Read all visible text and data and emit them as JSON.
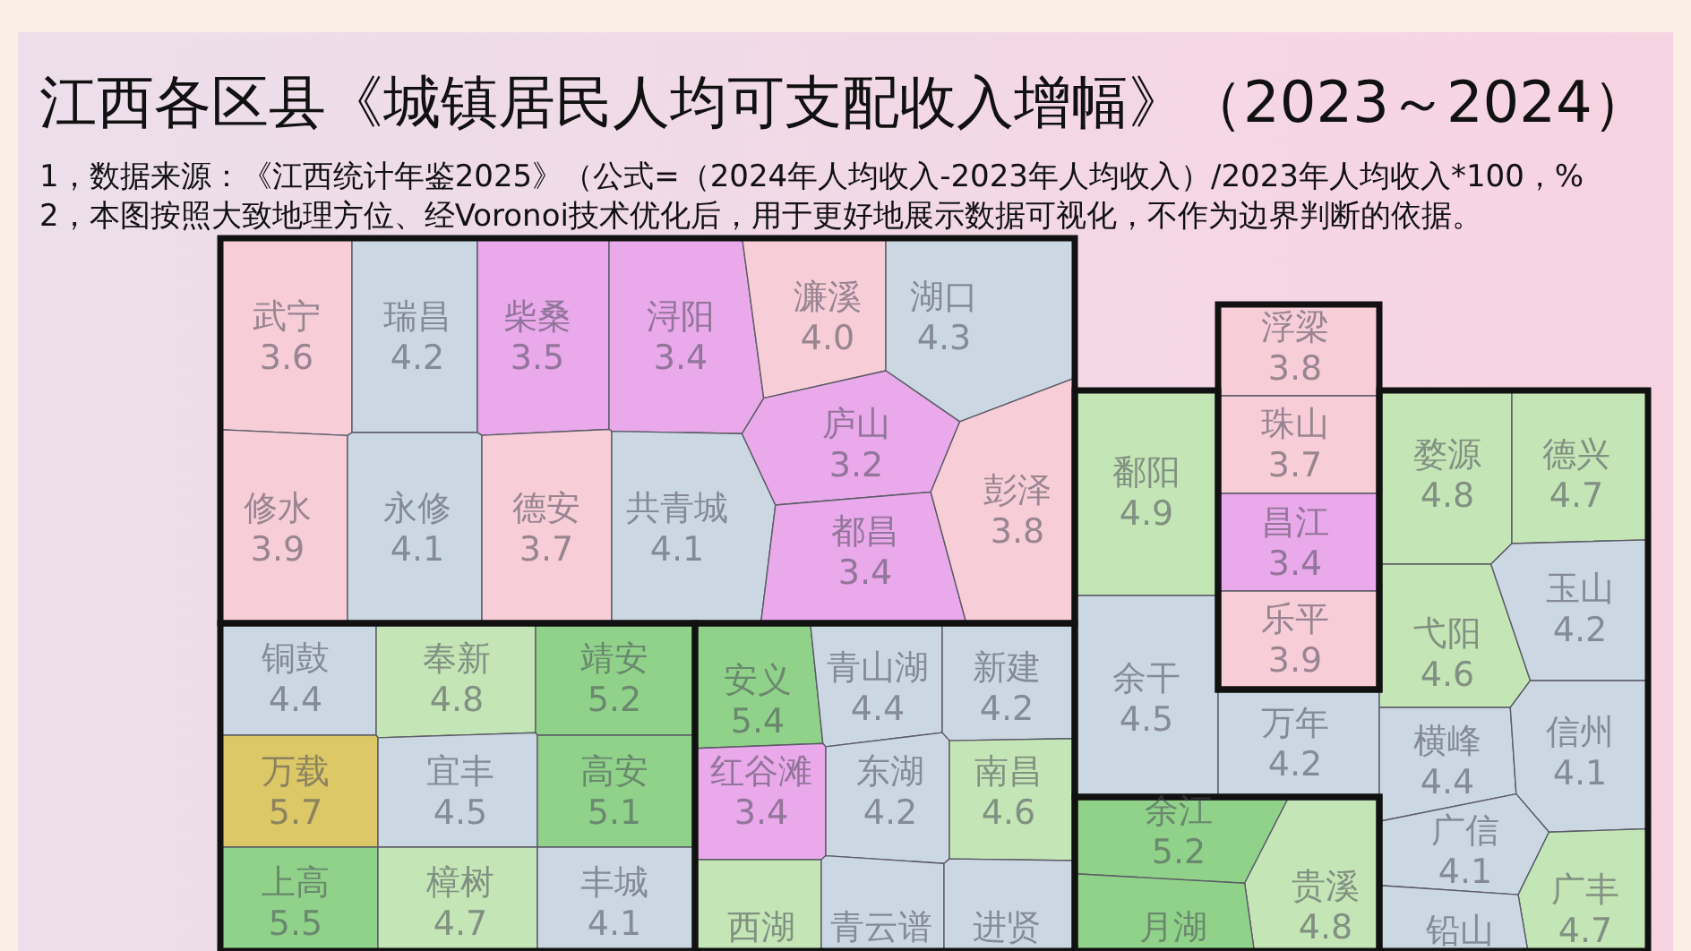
{
  "chart_data": {
    "type": "other",
    "title": "江西各区县《城镇居民人均可支配收入增幅》（2023～2024）",
    "annotations": [
      "1，数据来源：《江西统计年鉴2025》（公式=（2024年人均收入-2023年人均收入）/2023年人均收入*100，%",
      "2，本图按照大致地理方位、经Voronoi技术优化后，用于更好地展示数据可视化，不作为边界判断的依据。"
    ],
    "categories": [
      "武宁",
      "瑞昌",
      "柴桑",
      "浔阳",
      "濂溪",
      "湖口",
      "修水",
      "永修",
      "德安",
      "共青城",
      "庐山",
      "都昌",
      "彭泽",
      "浮梁",
      "珠山",
      "昌江",
      "乐平",
      "鄱阳",
      "余干",
      "万年",
      "婺源",
      "德兴",
      "弋阳",
      "玉山",
      "横峰",
      "信州",
      "广信",
      "广丰",
      "铅山",
      "余江",
      "贵溪",
      "月湖",
      "铜鼓",
      "奉新",
      "靖安",
      "万载",
      "宜丰",
      "高安",
      "上高",
      "樟树",
      "丰城",
      "安义",
      "青山湖",
      "新建",
      "红谷滩",
      "东湖",
      "南昌",
      "西湖",
      "青云谱",
      "进贤"
    ],
    "values": [
      3.6,
      4.2,
      3.5,
      3.4,
      4.0,
      4.3,
      3.9,
      4.1,
      3.7,
      4.1,
      3.2,
      3.4,
      3.8,
      3.8,
      3.7,
      3.4,
      3.9,
      4.9,
      4.5,
      4.2,
      4.8,
      4.7,
      4.6,
      4.2,
      4.4,
      4.1,
      4.1,
      4.7,
      null,
      5.2,
      4.8,
      null,
      4.4,
      4.8,
      5.2,
      5.7,
      4.5,
      5.1,
      5.5,
      4.7,
      4.1,
      5.4,
      4.4,
      4.2,
      3.4,
      4.2,
      4.6,
      null,
      null,
      null
    ],
    "value_labels": [
      "3.6",
      "4.2",
      "3.5",
      "3.4",
      "4.0",
      "4.3",
      "3.9",
      "4.1",
      "3.7",
      "4.1",
      "3.2",
      "3.4",
      "3.8",
      "3.8",
      "3.7",
      "3.4",
      "3.9",
      "4.9",
      "4.5",
      "4.2",
      "4.8",
      "4.7",
      "4.6",
      "4.2",
      "4.4",
      "4.1",
      "4.1",
      "4.7",
      null,
      "5.2",
      "4.8",
      null,
      "4.4",
      "4.8",
      "5.2",
      "5.7",
      "4.5",
      "5.1",
      "5.5",
      "4.7",
      "4.1",
      "5.4",
      "4.4",
      "4.2",
      "3.4",
      "4.2",
      "4.6",
      null,
      null,
      null
    ],
    "colors": [
      "#f7cdd8",
      "#cbd8e3",
      "#e9a9ea",
      "#e9a9ea",
      "#f7cdd8",
      "#cbd8e3",
      "#f7cdd8",
      "#cbd8e3",
      "#f7cdd8",
      "#cbd8e3",
      "#e9a9ea",
      "#e9a9ea",
      "#f7cdd8",
      "#f7cdd8",
      "#f7cdd8",
      "#e9a9ea",
      "#f7cdd8",
      "#c4e5b6",
      "#cbd8e3",
      "#cbd8e3",
      "#c4e5b6",
      "#c4e5b6",
      "#c4e5b6",
      "#cbd8e3",
      "#cbd8e3",
      "#cbd8e3",
      "#cbd8e3",
      "#c4e5b6",
      "#cbd8e3",
      "#90d28a",
      "#c4e5b6",
      "#90d28a",
      "#cbd8e3",
      "#c4e5b6",
      "#90d28a",
      "#dcc867",
      "#cbd8e3",
      "#90d28a",
      "#90d28a",
      "#c4e5b6",
      "#cbd8e3",
      "#90d28a",
      "#cbd8e3",
      "#cbd8e3",
      "#e9a9ea",
      "#cbd8e3",
      "#c4e5b6",
      "#c4e5b6",
      "#cbd8e3",
      "#cbd8e3"
    ]
  }
}
